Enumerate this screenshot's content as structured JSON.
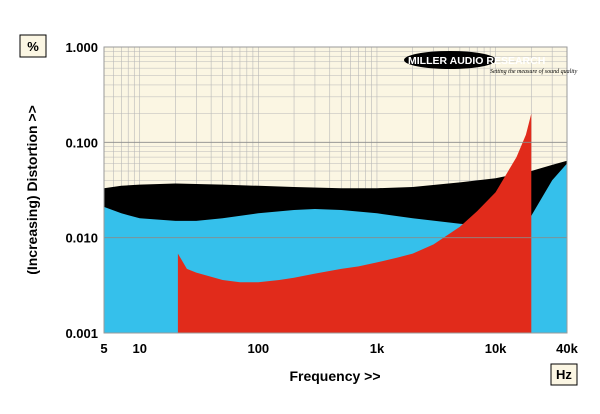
{
  "logo": {
    "name": "MILLER AUDIO RESEARCH",
    "tagline": "Setting the measure of sound quality"
  },
  "colors": {
    "background": "#fbf6e3",
    "grid": "#b8b8b8",
    "black_series": "#000000",
    "blue_series": "#35c0eb",
    "red_series": "#e12b1b"
  },
  "chart_data": {
    "type": "area",
    "x_scale": "log",
    "y_scale": "log",
    "xlim": [
      5,
      40000
    ],
    "ylim": [
      0.001,
      1.0
    ],
    "xlabel": "Frequency >>",
    "ylabel": "(Increasing) Distortion >>",
    "x_unit": "Hz",
    "y_unit": "%",
    "x_ticks": [
      {
        "value": 5,
        "label": "5"
      },
      {
        "value": 10,
        "label": "10"
      },
      {
        "value": 100,
        "label": "100"
      },
      {
        "value": 1000,
        "label": "1k"
      },
      {
        "value": 10000,
        "label": "10k"
      },
      {
        "value": 40000,
        "label": "40k"
      }
    ],
    "y_ticks": [
      {
        "value": 0.001,
        "label": "0.001"
      },
      {
        "value": 0.01,
        "label": "0.010"
      },
      {
        "value": 0.1,
        "label": "0.100"
      },
      {
        "value": 1.0,
        "label": "1.000"
      }
    ],
    "grid": true,
    "series": [
      {
        "color": "#000000",
        "points": [
          [
            5,
            0.033
          ],
          [
            7,
            0.035
          ],
          [
            10,
            0.036
          ],
          [
            20,
            0.037
          ],
          [
            50,
            0.036
          ],
          [
            100,
            0.035
          ],
          [
            200,
            0.034
          ],
          [
            500,
            0.033
          ],
          [
            1000,
            0.033
          ],
          [
            2000,
            0.034
          ],
          [
            5000,
            0.038
          ],
          [
            10000,
            0.042
          ],
          [
            20000,
            0.05
          ],
          [
            30000,
            0.058
          ],
          [
            40000,
            0.064
          ]
        ]
      },
      {
        "color": "#35c0eb",
        "points": [
          [
            5,
            0.021
          ],
          [
            7,
            0.018
          ],
          [
            10,
            0.016
          ],
          [
            20,
            0.015
          ],
          [
            30,
            0.015
          ],
          [
            50,
            0.016
          ],
          [
            100,
            0.018
          ],
          [
            200,
            0.0195
          ],
          [
            300,
            0.02
          ],
          [
            500,
            0.0195
          ],
          [
            1000,
            0.018
          ],
          [
            2000,
            0.016
          ],
          [
            5000,
            0.014
          ],
          [
            10000,
            0.013
          ],
          [
            20000,
            0.017
          ],
          [
            30000,
            0.04
          ],
          [
            40000,
            0.06
          ]
        ]
      },
      {
        "color": "#e12b1b",
        "points": [
          [
            21,
            0.0068
          ],
          [
            25,
            0.0047
          ],
          [
            30,
            0.0043
          ],
          [
            50,
            0.0036
          ],
          [
            70,
            0.0034
          ],
          [
            100,
            0.0034
          ],
          [
            150,
            0.0036
          ],
          [
            200,
            0.0038
          ],
          [
            300,
            0.0042
          ],
          [
            500,
            0.0047
          ],
          [
            700,
            0.005
          ],
          [
            1000,
            0.0055
          ],
          [
            1500,
            0.0062
          ],
          [
            2000,
            0.0068
          ],
          [
            3000,
            0.0085
          ],
          [
            5000,
            0.013
          ],
          [
            7000,
            0.019
          ],
          [
            10000,
            0.03
          ],
          [
            15000,
            0.07
          ],
          [
            18000,
            0.12
          ],
          [
            20000,
            0.2
          ]
        ]
      }
    ]
  }
}
